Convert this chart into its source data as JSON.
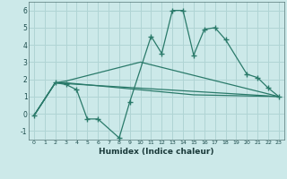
{
  "xlabel": "Humidex (Indice chaleur)",
  "background_color": "#cce9e9",
  "line_color": "#2a7a6a",
  "grid_color": "#b0d4d4",
  "line1_x": [
    0,
    2,
    3,
    4,
    5,
    6,
    8,
    9,
    11,
    12,
    13,
    14,
    15,
    16,
    17,
    18,
    20,
    21,
    22,
    23
  ],
  "line1_y": [
    -0.1,
    1.8,
    1.7,
    1.4,
    -0.3,
    -0.3,
    -1.4,
    0.7,
    4.5,
    3.5,
    6.0,
    6.0,
    3.4,
    4.9,
    5.0,
    4.3,
    2.3,
    2.1,
    1.5,
    1.0
  ],
  "line2_x": [
    0,
    2,
    3,
    10,
    23
  ],
  "line2_y": [
    -0.1,
    1.8,
    1.9,
    3.0,
    1.0
  ],
  "line3_x": [
    0,
    2,
    3,
    15,
    23
  ],
  "line3_y": [
    -0.1,
    1.8,
    1.8,
    1.1,
    1.0
  ],
  "line4_x": [
    0,
    2,
    3,
    23
  ],
  "line4_y": [
    -0.1,
    1.8,
    1.75,
    1.0
  ],
  "ylim": [
    -1.5,
    6.5
  ],
  "xlim": [
    -0.5,
    23.5
  ]
}
